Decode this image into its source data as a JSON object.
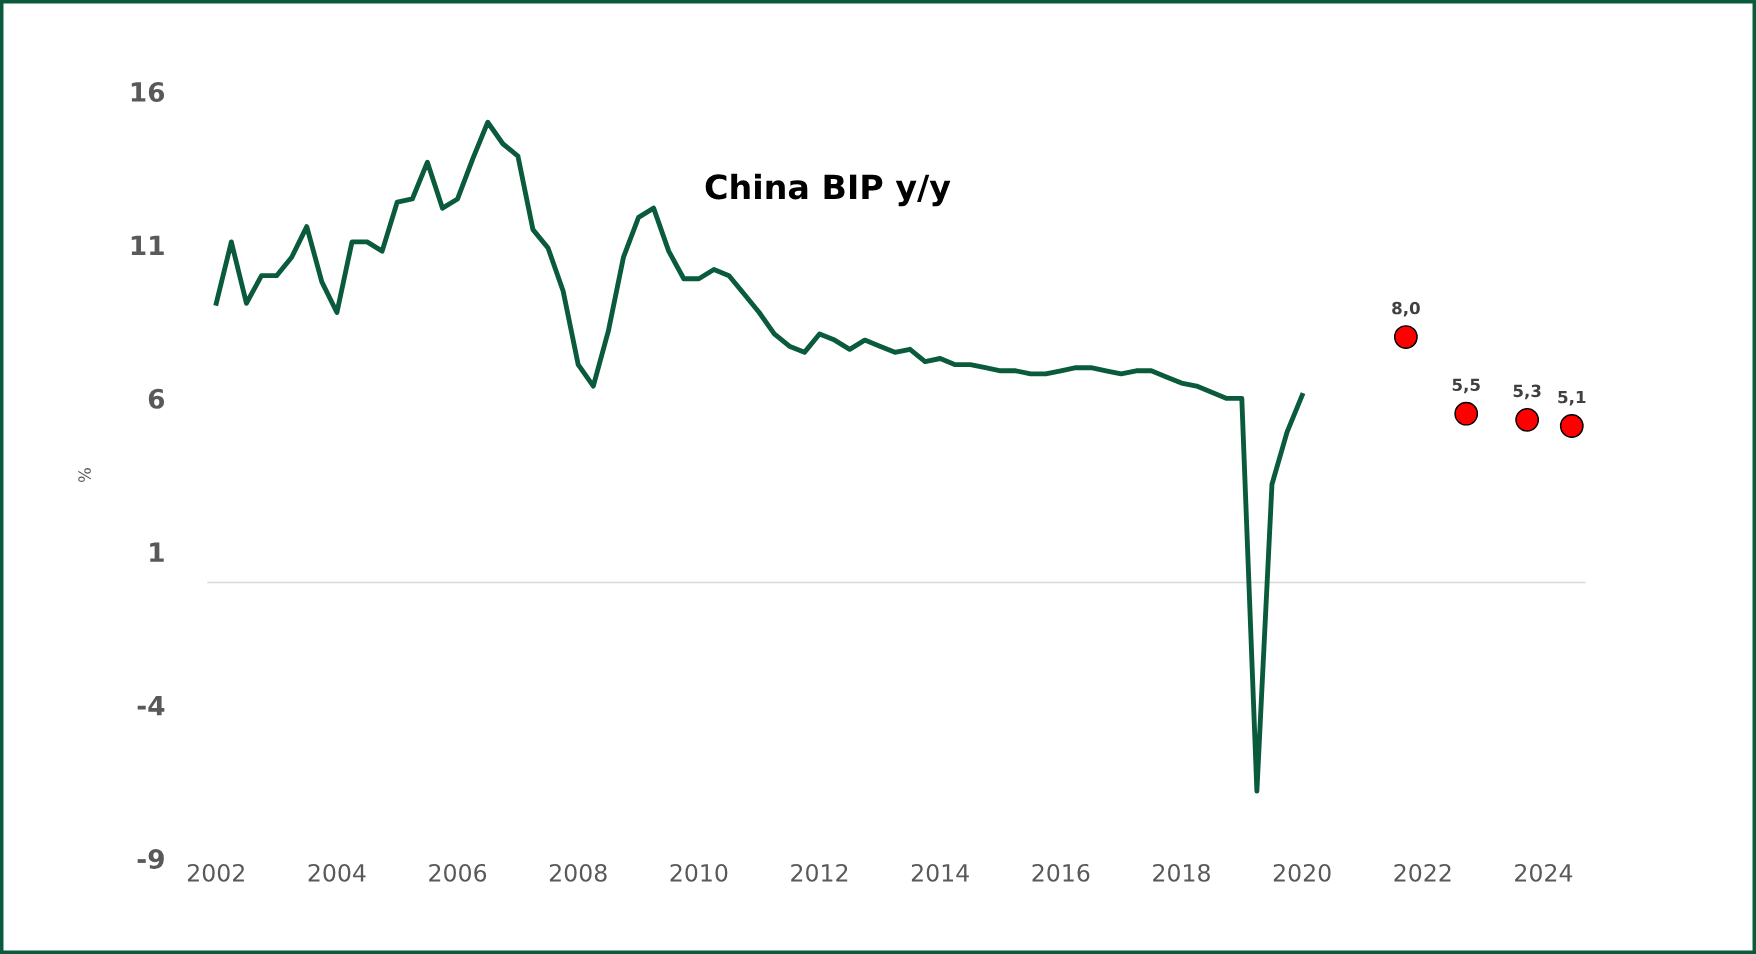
{
  "chart_data": {
    "type": "line",
    "title": "China BIP y/y",
    "ylabel": "%",
    "xlim": [
      2001.85,
      2024.7
    ],
    "xticks": [
      2002,
      2004,
      2006,
      2008,
      2010,
      2012,
      2014,
      2016,
      2018,
      2020,
      2022,
      2024
    ],
    "ylim": [
      -9,
      16
    ],
    "yticks": [
      -9,
      -4,
      1,
      6,
      11,
      16
    ],
    "grid": false,
    "legend": false,
    "marker": "none",
    "line_style": "solid",
    "ref_lines": [
      {
        "axis": "y",
        "value": 0,
        "color": "#d9d9d9"
      }
    ],
    "series": [
      {
        "color": "#0a5a3c",
        "x": [
          2002,
          2002.25,
          2002.5,
          2002.75,
          2003,
          2003.25,
          2003.5,
          2003.75,
          2004,
          2004.25,
          2004.5,
          2004.75,
          2005,
          2005.25,
          2005.5,
          2005.75,
          2006,
          2006.25,
          2006.5,
          2006.75,
          2007,
          2007.25,
          2007.5,
          2007.75,
          2008,
          2008.25,
          2008.5,
          2008.75,
          2009,
          2009.25,
          2009.5,
          2009.75,
          2010,
          2010.25,
          2010.5,
          2010.75,
          2011,
          2011.25,
          2011.5,
          2011.75,
          2012,
          2012.25,
          2012.5,
          2012.75,
          2013,
          2013.25,
          2013.5,
          2013.75,
          2014,
          2014.25,
          2014.5,
          2014.75,
          2015,
          2015.25,
          2015.5,
          2015.75,
          2016,
          2016.25,
          2016.5,
          2016.75,
          2017,
          2017.25,
          2017.5,
          2017.75,
          2018,
          2018.25,
          2018.5,
          2018.75,
          2019,
          2019.25,
          2019.5,
          2019.75,
          2020
        ],
        "values": [
          9.1,
          11.1,
          9.1,
          10.0,
          10.0,
          10.6,
          11.6,
          9.8,
          8.8,
          11.1,
          11.1,
          10.8,
          12.4,
          12.5,
          13.7,
          12.2,
          12.5,
          13.8,
          15.0,
          14.3,
          13.9,
          11.5,
          10.9,
          9.5,
          7.1,
          6.4,
          8.2,
          10.6,
          11.9,
          12.2,
          10.8,
          9.9,
          9.9,
          10.2,
          10.0,
          9.4,
          8.8,
          8.1,
          7.7,
          7.5,
          8.1,
          7.9,
          7.6,
          7.9,
          7.7,
          7.5,
          7.6,
          7.2,
          7.3,
          7.1,
          7.1,
          7.0,
          6.9,
          6.9,
          6.8,
          6.8,
          6.9,
          7.0,
          7.0,
          6.9,
          6.8,
          6.9,
          6.9,
          6.7,
          6.5,
          6.4,
          6.2,
          6.0,
          6.0,
          -6.8,
          3.2,
          4.9,
          6.1
        ]
      },
      {
        "type": "scatter",
        "color": "#ff0000",
        "marker": "circle",
        "x": [
          2021.72,
          2022.72,
          2023.73,
          2024.47
        ],
        "values": [
          8.0,
          5.5,
          5.3,
          5.1
        ],
        "value_labels": [
          "8,0",
          "5,5",
          "5,3",
          "5,1"
        ]
      }
    ]
  }
}
